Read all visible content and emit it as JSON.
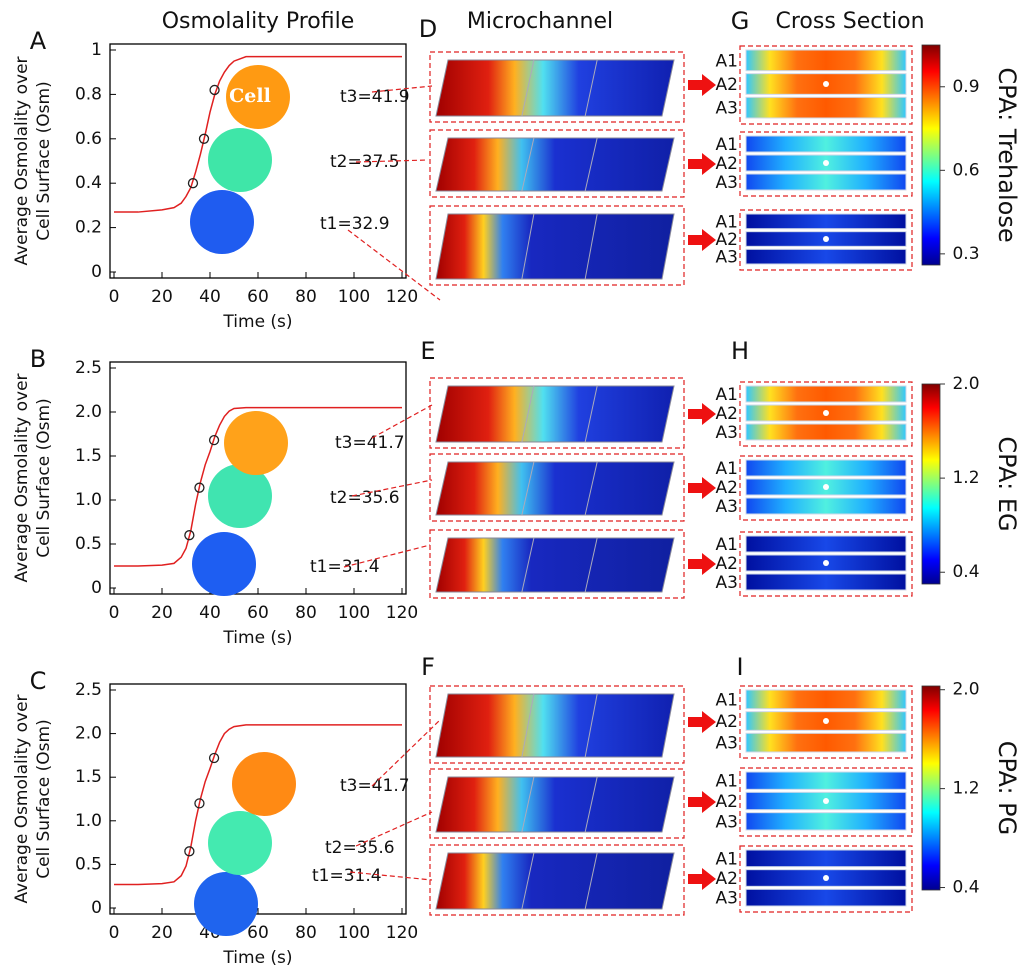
{
  "chart_data": [
    {
      "type": "line",
      "panel": "A",
      "x_label": "Time (s)",
      "y_label": [
        "Average Osmolality over",
        "Cell Surface (Osm)"
      ],
      "color": "#e02020",
      "xlim": [
        0,
        120
      ],
      "xticks": [
        0,
        20,
        40,
        60,
        80,
        100,
        120
      ],
      "ylim": [
        0,
        1
      ],
      "yticks": [
        0,
        0.2,
        0.4,
        0.6,
        0.8,
        1
      ],
      "x": [
        0,
        10,
        20,
        25,
        28,
        30,
        32,
        34,
        36,
        38,
        40,
        42,
        44,
        46,
        48,
        50,
        55,
        60,
        80,
        100,
        120
      ],
      "values": [
        0.27,
        0.27,
        0.28,
        0.29,
        0.31,
        0.34,
        0.38,
        0.45,
        0.53,
        0.62,
        0.72,
        0.8,
        0.86,
        0.9,
        0.93,
        0.95,
        0.97,
        0.97,
        0.97,
        0.97,
        0.97
      ],
      "points": {
        "x": [
          32.9,
          37.5,
          41.9
        ],
        "values": [
          0.4,
          0.6,
          0.82
        ],
        "labels": [
          "t1=32.9",
          "t2=37.5",
          "t3=41.9"
        ],
        "cell_colors": [
          "#1f5cf0",
          "#3fe6a8",
          "#ff9a12"
        ]
      },
      "cell_label": "Cell"
    },
    {
      "type": "line",
      "panel": "B",
      "x_label": "Time (s)",
      "y_label": [
        "Average Osmolality over",
        "Cell Surface (Osm)"
      ],
      "color": "#e02020",
      "xlim": [
        0,
        120
      ],
      "xticks": [
        0,
        20,
        40,
        60,
        80,
        100,
        120
      ],
      "ylim": [
        0,
        2.5
      ],
      "yticks": [
        0,
        0.5,
        {
          "value": 1,
          "label": "1.0"
        },
        1.5,
        {
          "value": 2,
          "label": "2.0"
        },
        2.5
      ],
      "x": [
        0,
        10,
        20,
        25,
        28,
        30,
        32,
        34,
        36,
        38,
        40,
        42,
        44,
        46,
        48,
        50,
        55,
        60,
        80,
        100,
        120
      ],
      "values": [
        0.25,
        0.25,
        0.26,
        0.28,
        0.35,
        0.45,
        0.65,
        0.95,
        1.2,
        1.4,
        1.55,
        1.72,
        1.85,
        1.95,
        2.01,
        2.04,
        2.05,
        2.05,
        2.05,
        2.05,
        2.05
      ],
      "points": {
        "x": [
          31.4,
          35.6,
          41.7
        ],
        "values": [
          0.6,
          1.14,
          1.68
        ],
        "labels": [
          "t1=31.4",
          "t2=35.6",
          "t3=41.7"
        ],
        "cell_colors": [
          "#1e5ef2",
          "#40e4b0",
          "#ffa21a"
        ]
      }
    },
    {
      "type": "line",
      "panel": "C",
      "x_label": "Time (s)",
      "y_label": [
        "Average Osmolality over",
        "Cell Surface (Osm)"
      ],
      "color": "#e02020",
      "xlim": [
        0,
        120
      ],
      "xticks": [
        0,
        20,
        40,
        60,
        80,
        100,
        120
      ],
      "ylim": [
        0,
        2.5
      ],
      "yticks": [
        0,
        0.5,
        {
          "value": 1,
          "label": "1.0"
        },
        1.5,
        {
          "value": 2,
          "label": "2.0"
        },
        2.5
      ],
      "x": [
        0,
        10,
        20,
        25,
        28,
        30,
        32,
        34,
        36,
        38,
        40,
        42,
        44,
        46,
        48,
        50,
        55,
        60,
        80,
        100,
        120
      ],
      "values": [
        0.27,
        0.27,
        0.28,
        0.3,
        0.37,
        0.48,
        0.7,
        1.0,
        1.25,
        1.45,
        1.6,
        1.76,
        1.9,
        2.0,
        2.05,
        2.08,
        2.1,
        2.1,
        2.1,
        2.1,
        2.1
      ],
      "points": {
        "x": [
          31.4,
          35.6,
          41.7
        ],
        "values": [
          0.65,
          1.2,
          1.72
        ],
        "labels": [
          "t1=31.4",
          "t2=35.6",
          "t3=41.7"
        ],
        "cell_colors": [
          "#1f64ee",
          "#44eab0",
          "#ff8a14"
        ]
      }
    }
  ],
  "figure": {
    "headers": [
      "Osmolality Profile",
      "Microchannel",
      "Cross Section"
    ],
    "panels": [
      "D",
      "E",
      "F",
      "G",
      "H",
      "I"
    ],
    "cross_section_labels": [
      "A1",
      "A2",
      "A3"
    ],
    "colorbars": [
      {
        "label": "CPA: Trehalose",
        "lim": [
          0.26,
          1.05
        ],
        "ticks": [
          0.3,
          0.6,
          0.9
        ]
      },
      {
        "label": "CPA: EG",
        "lim": [
          0.3,
          2.0
        ],
        "ticks": [
          0.4,
          1.2,
          {
            "value": 2,
            "label": "2.0"
          }
        ]
      },
      {
        "label": "CPA: PG",
        "lim": [
          0.38,
          2.03
        ],
        "ticks": [
          0.4,
          1.2,
          {
            "value": 2,
            "label": "2.0"
          }
        ]
      }
    ]
  }
}
